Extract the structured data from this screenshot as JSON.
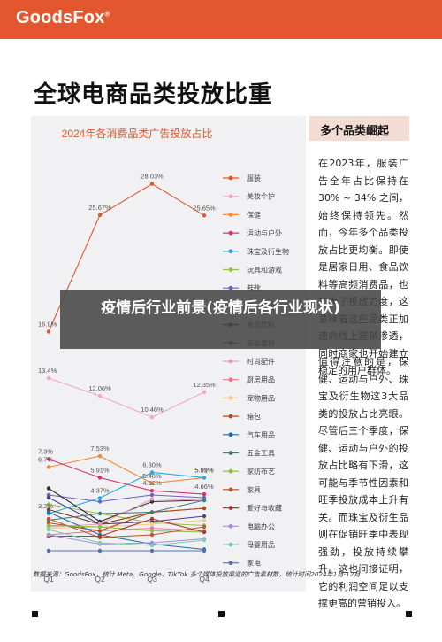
{
  "header": {
    "brand": "GoodsFox",
    "brand_mark": "®"
  },
  "page_title": "全球电商品类投放比重",
  "side": {
    "heading": "多个品类崛起",
    "para1": "在2023年，服装广告全年占比保持在 30% ~ 34% 之间，始终保持领先。然而，今年多个品类投放占比更均衡。即使是居家日用、食品饮料等高频消费品，也加大了投放力度，这意味着这些品类正加速向线上营销渗透，同时商家也开始建立稳定的用户群体。",
    "para2": "值得注意的是，保健、运动与户外、珠宝及衍生物这3大品类的投放占比亮眼。尽管后三个季度，保健、运动与户外的投放占比略有下滑，这可能与季节性因素和旺季投放成本上升有关。而珠宝及衍生品则在促销旺季中表现强劲，投放持续攀升。这也间接证明，它的利润空间足以支撑更高的营销投入。"
  },
  "overlay_title": "疫情后行业前景(疫情后各行业现状)",
  "source": "数据来源：GoodsFox，统计 Meta、Google、TikTok 多个媒体投放渠道的广告素材数，统计时间2024年1月-12月",
  "chart_data": {
    "type": "line",
    "title": "2024年各消费品类广告投放占比",
    "categories": [
      "Q1",
      "Q2",
      "Q3",
      "Q4"
    ],
    "ylim": [
      0,
      30
    ],
    "legend_position": "right",
    "series": [
      {
        "name": "服装",
        "color": "#e4572e",
        "values": [
          16.9,
          25.67,
          28.03,
          25.65
        ],
        "labels": [
          "16.9%",
          "25.67%",
          "28.03%",
          "25.65%"
        ]
      },
      {
        "name": "美妆个护",
        "color": "#f4a6c8",
        "values": [
          13.4,
          12.06,
          10.46,
          12.35
        ],
        "labels": [
          "13.4%",
          "12.06%",
          "10.46%",
          "12.35%"
        ]
      },
      {
        "name": "保健",
        "color": "#f08a3c",
        "values": [
          6.7,
          7.53,
          5.48,
          5.89
        ],
        "labels": [
          "6.7%",
          "7.53%",
          "5.48%",
          "5.89%"
        ]
      },
      {
        "name": "运动与户外",
        "color": "#d6336c",
        "values": [
          7.3,
          5.91,
          4.92,
          4.66
        ],
        "labels": [
          "7.3%",
          "5.91%",
          "4.92%",
          "4.66%"
        ]
      },
      {
        "name": "珠宝及衍生物",
        "color": "#1eaee0",
        "values": [
          3.2,
          4.37,
          6.3,
          5.91
        ],
        "labels": [
          "3.2%",
          "4.37%",
          "6.30%",
          "5.91%"
        ]
      },
      {
        "name": "玩具和游戏",
        "color": "#95c23d",
        "values": [
          3.9,
          3.2,
          2.5,
          2.3
        ]
      },
      {
        "name": "鞋靴",
        "color": "#6c63c7",
        "values": [
          4.6,
          4.1,
          4.6,
          4.4
        ]
      },
      {
        "name": "居家日用",
        "color": "#7a3e1d",
        "values": [
          3.5,
          2.4,
          3.3,
          3.6
        ]
      },
      {
        "name": "食品饮料",
        "color": "#2f2f2f",
        "values": [
          5.1,
          2.6,
          4.1,
          4.2
        ]
      },
      {
        "name": "家装建材",
        "color": "#4b3f8f",
        "values": [
          4.4,
          2.4,
          2.6,
          3.0
        ]
      },
      {
        "name": "时尚配件",
        "color": "#e99bc4",
        "values": [
          2.2,
          2.4,
          4.3,
          4.2
        ]
      },
      {
        "name": "厨房用品",
        "color": "#e07b8b",
        "values": [
          1.6,
          1.9,
          2.1,
          1.9
        ]
      },
      {
        "name": "宠物用品",
        "color": "#f7c98b",
        "values": [
          2.1,
          2.2,
          2.4,
          2.7
        ]
      },
      {
        "name": "箱包",
        "color": "#b04a1a",
        "values": [
          2.5,
          1.9,
          3.3,
          3.6
        ]
      },
      {
        "name": "汽车用品",
        "color": "#1f6fb2",
        "values": [
          3.3,
          1.6,
          0.9,
          0.5
        ]
      },
      {
        "name": "五金工具",
        "color": "#3a7d7a",
        "values": [
          2.7,
          3.2,
          3.3,
          4.2
        ]
      },
      {
        "name": "家纺布艺",
        "color": "#8bbf3c",
        "values": [
          2.3,
          2.2,
          1.9,
          1.8
        ]
      },
      {
        "name": "家具",
        "color": "#c2552b",
        "values": [
          2.8,
          1.4,
          1.6,
          2.2
        ]
      },
      {
        "name": "爱好与收藏",
        "color": "#aa3a3a",
        "values": [
          1.5,
          1.5,
          2.8,
          1.8
        ]
      },
      {
        "name": "电脑办公",
        "color": "#a98be0",
        "values": [
          1.6,
          0.9,
          1.0,
          1.3
        ]
      },
      {
        "name": "母婴用品",
        "color": "#75d0b2",
        "values": [
          2.0,
          1.0,
          0.8,
          1.2
        ]
      },
      {
        "name": "家电",
        "color": "#5b6fa8",
        "values": [
          0.4,
          0.4,
          0.4,
          0.4
        ]
      }
    ]
  }
}
